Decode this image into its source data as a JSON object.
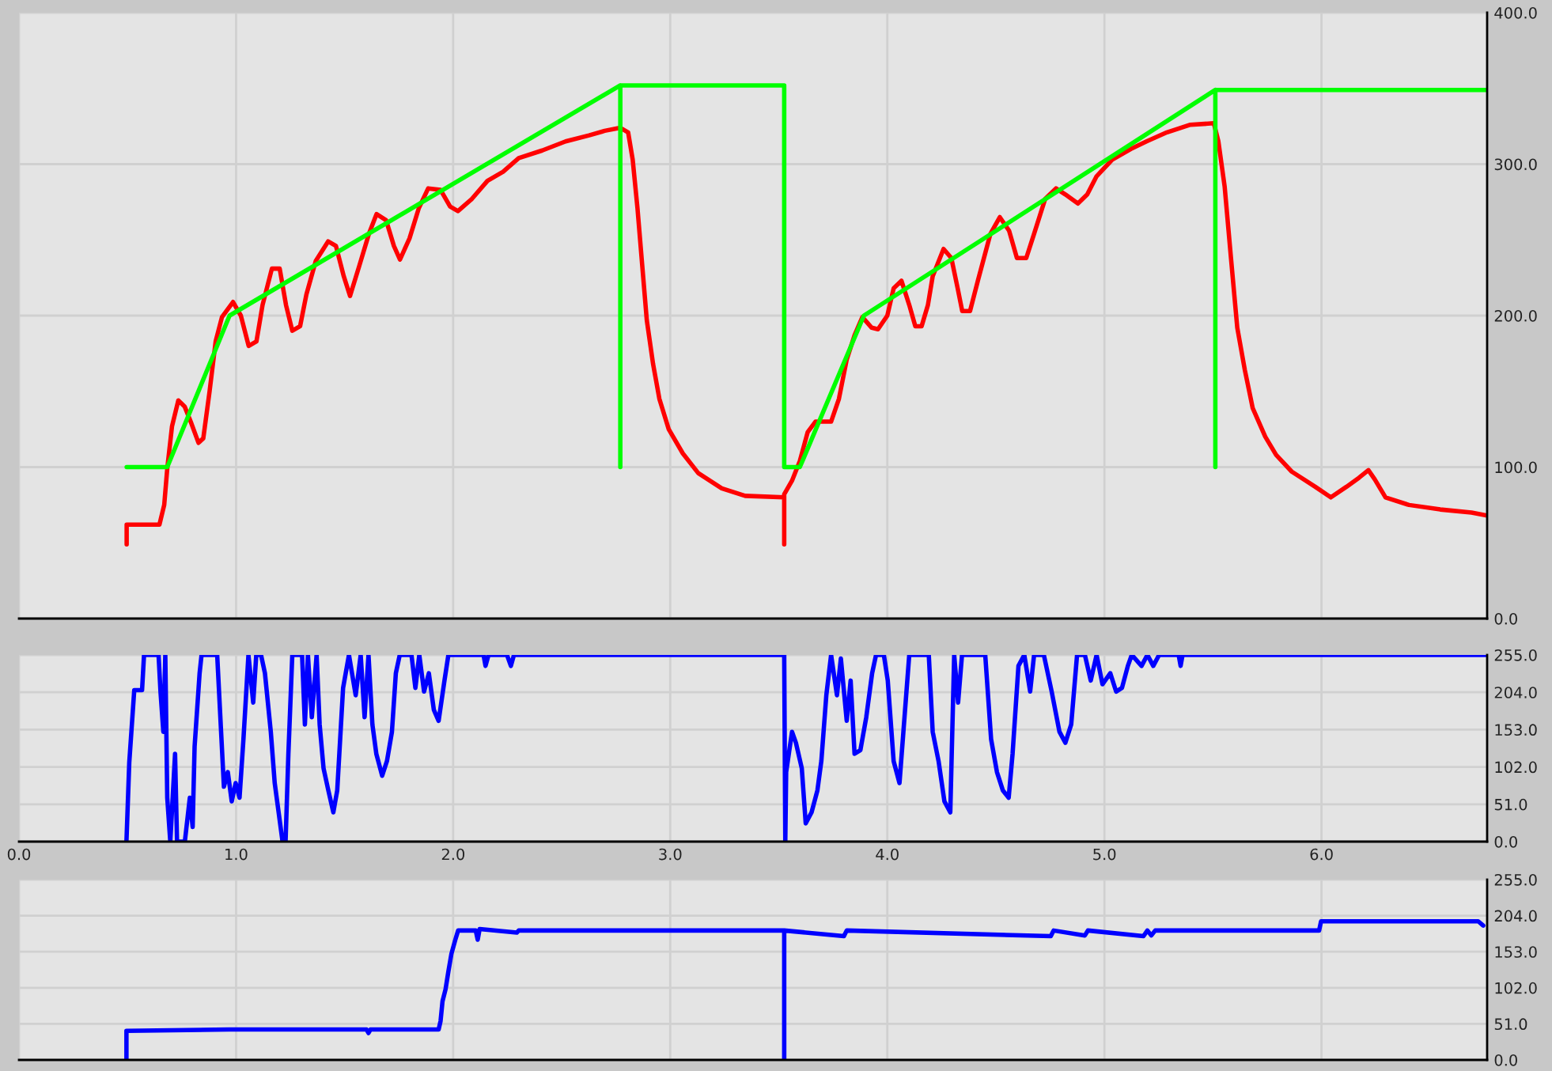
{
  "chart_data": [
    {
      "type": "line",
      "xlim": [
        0,
        6.763
      ],
      "xticks": [
        0,
        1,
        2,
        3,
        4,
        5,
        6
      ],
      "ylim": [
        0,
        400
      ],
      "yticks": [
        {
          "value": 0,
          "label": "0.0"
        },
        {
          "value": 100,
          "label": "100.0"
        },
        {
          "value": 200,
          "label": "200.0"
        },
        {
          "value": 300,
          "label": "300.0"
        },
        {
          "value": 400,
          "label": "400.0"
        }
      ],
      "grid": true,
      "tick_labels": "y",
      "series": [
        {
          "color": "#ff0000",
          "x": [
            0.496,
            0.496,
            0.647,
            0.669,
            0.683,
            0.705,
            0.734,
            0.763,
            0.791,
            0.827,
            0.849,
            0.878,
            0.906,
            0.935,
            0.986,
            1.022,
            1.058,
            1.094,
            1.122,
            1.165,
            1.201,
            1.23,
            1.259,
            1.295,
            1.324,
            1.367,
            1.424,
            1.46,
            1.496,
            1.525,
            1.568,
            1.612,
            1.647,
            1.691,
            1.727,
            1.755,
            1.799,
            1.842,
            1.885,
            1.942,
            1.986,
            2.022,
            2.086,
            2.158,
            2.23,
            2.302,
            2.41,
            2.518,
            2.626,
            2.698,
            2.77,
            2.806,
            2.827,
            2.849,
            2.871,
            2.892,
            2.921,
            2.95,
            2.993,
            3.058,
            3.129,
            3.237,
            3.345,
            3.525,
            3.525,
            3.525,
            3.561,
            3.597,
            3.633,
            3.669,
            3.741,
            3.777,
            3.813,
            3.849,
            3.885,
            3.928,
            3.957,
            4.0,
            4.029,
            4.065,
            4.101,
            4.129,
            4.158,
            4.187,
            4.209,
            4.259,
            4.295,
            4.324,
            4.345,
            4.381,
            4.417,
            4.475,
            4.518,
            4.561,
            4.597,
            4.64,
            4.676,
            4.727,
            4.777,
            4.82,
            4.878,
            4.921,
            4.964,
            5.036,
            5.122,
            5.194,
            5.288,
            5.396,
            5.504,
            5.525,
            5.554,
            5.583,
            5.612,
            5.647,
            5.683,
            5.741,
            5.791,
            5.863,
            5.971,
            6.043,
            6.115,
            6.173,
            6.216,
            6.245,
            6.295,
            6.403,
            6.547,
            6.691,
            6.763
          ],
          "values": [
            49,
            62,
            62,
            75,
            99,
            127,
            144,
            140,
            130,
            116,
            119,
            150,
            183,
            199,
            209,
            200,
            180,
            183,
            207,
            231,
            231,
            207,
            190,
            193,
            214,
            236,
            249,
            246,
            226,
            213,
            233,
            254,
            267,
            263,
            246,
            237,
            251,
            271,
            284,
            283,
            272,
            269,
            277,
            289,
            295,
            304,
            309,
            315,
            319,
            322,
            324,
            321,
            303,
            271,
            233,
            197,
            168,
            145,
            125,
            109,
            96,
            86,
            81,
            80,
            49,
            82,
            91,
            104,
            123,
            130,
            130,
            145,
            171,
            187,
            199,
            192,
            191,
            200,
            218,
            223,
            207,
            193,
            193,
            207,
            226,
            244,
            238,
            218,
            203,
            203,
            223,
            254,
            265,
            256,
            238,
            238,
            254,
            277,
            284,
            280,
            274,
            280,
            292,
            303,
            310,
            315,
            321,
            326,
            327,
            315,
            285,
            238,
            192,
            164,
            139,
            120,
            108,
            97,
            87,
            80,
            87,
            93,
            98,
            92,
            80,
            75,
            72,
            70,
            68
          ]
        },
        {
          "color": "#00ff00",
          "x": [
            0.496,
            0.683,
            0.97,
            2.77,
            2.77,
            2.77,
            3.525,
            3.525,
            3.597,
            3.892,
            5.511,
            5.511,
            5.511,
            6.763
          ],
          "values": [
            100,
            100,
            200,
            352,
            100,
            352,
            352,
            100,
            100,
            200,
            349,
            100,
            349,
            349
          ]
        }
      ]
    },
    {
      "type": "line",
      "xlim": [
        0,
        6.763
      ],
      "xticks": [
        {
          "value": 0,
          "label": "0.0"
        },
        {
          "value": 1,
          "label": "1.0"
        },
        {
          "value": 2,
          "label": "2.0"
        },
        {
          "value": 3,
          "label": "3.0"
        },
        {
          "value": 4,
          "label": "4.0"
        },
        {
          "value": 5,
          "label": "5.0"
        },
        {
          "value": 6,
          "label": "6.0"
        }
      ],
      "ylim": [
        0,
        255
      ],
      "yticks": [
        {
          "value": 0,
          "label": "0.0"
        },
        {
          "value": 51,
          "label": "51.0"
        },
        {
          "value": 102,
          "label": "102.0"
        },
        {
          "value": 153,
          "label": "153.0"
        },
        {
          "value": 204,
          "label": "204.0"
        },
        {
          "value": 255,
          "label": "255.0"
        }
      ],
      "grid": true,
      "series": [
        {
          "color": "#0000ff",
          "x": [
            0.495,
            0.508,
            0.531,
            0.567,
            0.576,
            0.643,
            0.652,
            0.665,
            0.674,
            0.683,
            0.697,
            0.719,
            0.728,
            0.764,
            0.787,
            0.8,
            0.809,
            0.832,
            0.841,
            0.913,
            0.931,
            0.944,
            0.962,
            0.98,
            0.998,
            1.016,
            1.034,
            1.057,
            1.079,
            1.093,
            1.115,
            1.133,
            1.16,
            1.178,
            1.196,
            1.214,
            1.228,
            1.241,
            1.259,
            1.304,
            1.317,
            1.331,
            1.349,
            1.371,
            1.385,
            1.403,
            1.425,
            1.448,
            1.466,
            1.493,
            1.52,
            1.551,
            1.574,
            1.592,
            1.61,
            1.628,
            1.646,
            1.673,
            1.695,
            1.718,
            1.736,
            1.754,
            1.808,
            1.826,
            1.844,
            1.866,
            1.888,
            1.911,
            1.933,
            1.96,
            1.978,
            2.14,
            2.149,
            2.163,
            2.248,
            2.266,
            2.28,
            3.525,
            3.53,
            3.534,
            3.561,
            3.579,
            3.606,
            3.624,
            3.651,
            3.678,
            3.696,
            3.719,
            3.741,
            3.768,
            3.786,
            3.813,
            3.831,
            3.849,
            3.876,
            3.903,
            3.93,
            3.948,
            3.984,
            4.002,
            4.029,
            4.056,
            4.074,
            4.101,
            4.191,
            4.209,
            4.236,
            4.263,
            4.29,
            4.308,
            4.326,
            4.344,
            4.451,
            4.478,
            4.505,
            4.532,
            4.559,
            4.577,
            4.604,
            4.631,
            4.658,
            4.676,
            4.721,
            4.757,
            4.793,
            4.82,
            4.847,
            4.874,
            4.91,
            4.937,
            4.964,
            4.991,
            5.027,
            5.054,
            5.081,
            5.108,
            5.126,
            5.171,
            5.198,
            5.225,
            5.252,
            5.342,
            5.351,
            5.36,
            6.763
          ],
          "values": [
            0,
            108,
            207,
            207,
            255,
            255,
            204,
            150,
            255,
            60,
            0,
            120,
            0,
            0,
            60,
            20,
            130,
            230,
            255,
            255,
            150,
            75,
            95,
            55,
            80,
            60,
            140,
            255,
            190,
            255,
            255,
            230,
            150,
            80,
            40,
            0,
            0,
            120,
            255,
            255,
            160,
            255,
            170,
            255,
            160,
            100,
            70,
            40,
            70,
            210,
            255,
            200,
            255,
            170,
            255,
            160,
            120,
            90,
            110,
            150,
            230,
            255,
            255,
            210,
            255,
            205,
            230,
            180,
            165,
            220,
            255,
            255,
            240,
            255,
            255,
            240,
            255,
            255,
            0,
            95,
            150,
            135,
            100,
            25,
            40,
            70,
            110,
            200,
            255,
            200,
            250,
            165,
            220,
            120,
            125,
            170,
            230,
            255,
            255,
            220,
            110,
            80,
            150,
            255,
            255,
            150,
            110,
            55,
            40,
            255,
            190,
            255,
            255,
            140,
            95,
            70,
            60,
            120,
            240,
            255,
            205,
            255,
            255,
            205,
            150,
            135,
            160,
            255,
            255,
            220,
            255,
            215,
            230,
            205,
            210,
            240,
            255,
            240,
            255,
            240,
            255,
            255,
            240,
            255,
            255
          ]
        }
      ]
    },
    {
      "type": "line",
      "xlim": [
        0,
        6.763
      ],
      "xticks": [
        0,
        1,
        2,
        3,
        4,
        5,
        6
      ],
      "ylim": [
        0,
        255
      ],
      "yticks": [
        {
          "value": 0,
          "label": "0.0"
        },
        {
          "value": 51,
          "label": "51.0"
        },
        {
          "value": 102,
          "label": "102.0"
        },
        {
          "value": 153,
          "label": "153.0"
        },
        {
          "value": 204,
          "label": "204.0"
        },
        {
          "value": 255,
          "label": "255.0"
        }
      ],
      "grid": true,
      "tick_labels": "y",
      "series": [
        {
          "color": "#0000ff",
          "x": [
            0.495,
            0.495,
            0.967,
            1.601,
            1.61,
            1.619,
            1.933,
            1.942,
            1.951,
            1.965,
            1.978,
            1.992,
            2.01,
            2.023,
            2.104,
            2.113,
            2.122,
            2.293,
            2.302,
            3.525,
            3.525,
            3.525,
            3.8,
            3.813,
            4.753,
            4.766,
            4.91,
            4.924,
            5.18,
            5.198,
            5.216,
            5.234,
            5.989,
            5.998,
            6.722,
            6.745
          ],
          "values": [
            0,
            41,
            43,
            43,
            38,
            43,
            43,
            55,
            83,
            100,
            125,
            150,
            170,
            183,
            183,
            170,
            185,
            180,
            183,
            183,
            0,
            183,
            175,
            183,
            175,
            183,
            176,
            183,
            175,
            183,
            176,
            183,
            183,
            196,
            196,
            190
          ]
        }
      ]
    }
  ]
}
